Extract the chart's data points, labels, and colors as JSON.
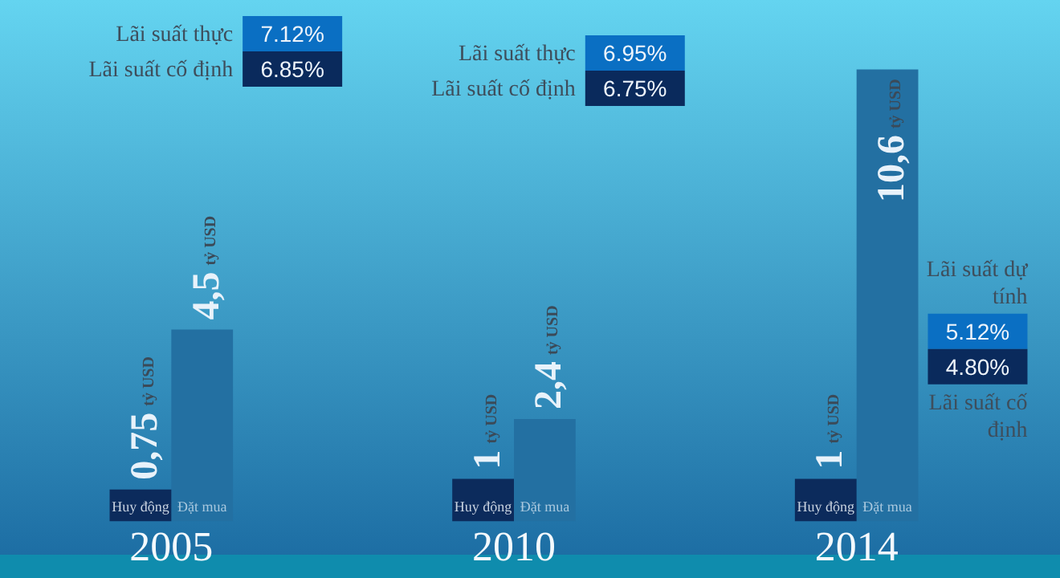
{
  "chart_data": {
    "type": "bar",
    "categories": [
      "2005",
      "2010",
      "2014"
    ],
    "series": [
      {
        "name": "Huy động",
        "color": "#0c2b5c",
        "values": [
          0.75,
          1,
          1
        ],
        "value_labels": [
          "0,75 tỷ USD",
          "1 tỷ USD",
          "1 tỷ USD"
        ]
      },
      {
        "name": "Đặt mua",
        "color": "#2370a2",
        "values": [
          4.5,
          2.4,
          10.6
        ],
        "value_labels": [
          "4,5 tỷ USD",
          "2,4 tỷ USD",
          "10,6 tỷ USD"
        ]
      }
    ],
    "annotations": [
      "Lãi suất thực",
      "7.12%",
      "Lãi suất cố định",
      "6.85%",
      "Lãi suất thực",
      "6.95%",
      "Lãi suất cố định",
      "6.75%",
      "Lãi suất dự tính",
      "5.12%",
      "Lãi suất cố định",
      "4.80%"
    ],
    "tick_labels": "x",
    "grid": false,
    "legend": false
  }
}
